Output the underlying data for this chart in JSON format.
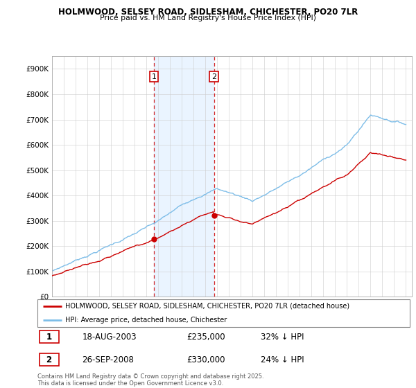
{
  "title": "HOLMWOOD, SELSEY ROAD, SIDLESHAM, CHICHESTER, PO20 7LR",
  "subtitle": "Price paid vs. HM Land Registry's House Price Index (HPI)",
  "hpi_color": "#7dbde8",
  "price_color": "#cc0000",
  "vline_color": "#cc0000",
  "shade_color": "#ddeeff",
  "ylim": [
    0,
    950000
  ],
  "yticks": [
    0,
    100000,
    200000,
    300000,
    400000,
    500000,
    600000,
    700000,
    800000,
    900000
  ],
  "xstart": 1995,
  "xend": 2025,
  "transaction1_date": 2003.63,
  "transaction1_price": 235000,
  "transaction1_label": "1",
  "transaction1_date_str": "18-AUG-2003",
  "transaction1_pct": "32% ↓ HPI",
  "transaction2_date": 2008.74,
  "transaction2_price": 330000,
  "transaction2_label": "2",
  "transaction2_date_str": "26-SEP-2008",
  "transaction2_pct": "24% ↓ HPI",
  "legend_label_price": "HOLMWOOD, SELSEY ROAD, SIDLESHAM, CHICHESTER, PO20 7LR (detached house)",
  "legend_label_hpi": "HPI: Average price, detached house, Chichester",
  "footer": "Contains HM Land Registry data © Crown copyright and database right 2025.\nThis data is licensed under the Open Government Licence v3.0."
}
